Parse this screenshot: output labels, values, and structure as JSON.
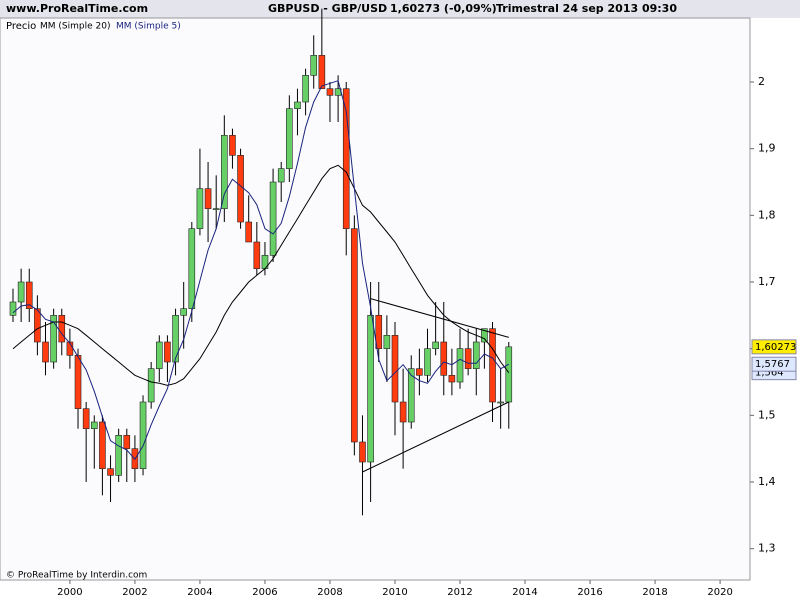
{
  "header": {
    "site": "www.ProRealTime.com",
    "footer": "© ProRealTime by Interdin.com"
  },
  "chart_data": {
    "type": "candlestick",
    "title": "GBPUSD - GBP/USD",
    "quote": "1,60273 (-0,09%)",
    "subtitle": "Trimestral  24 sep 2013 09:30",
    "x": [
      1998.25,
      1998.5,
      1998.75,
      1999,
      1999.25,
      1999.5,
      1999.75,
      2000,
      2000.25,
      2000.5,
      2000.75,
      2001,
      2001.25,
      2001.5,
      2001.75,
      2002,
      2002.25,
      2002.5,
      2002.75,
      2003,
      2003.25,
      2003.5,
      2003.75,
      2004,
      2004.25,
      2004.5,
      2004.75,
      2005,
      2005.25,
      2005.5,
      2005.75,
      2006,
      2006.25,
      2006.5,
      2006.75,
      2007,
      2007.25,
      2007.5,
      2007.75,
      2008,
      2008.25,
      2008.5,
      2008.75,
      2009,
      2009.25,
      2009.5,
      2009.75,
      2010,
      2010.25,
      2010.5,
      2010.75,
      2011,
      2011.25,
      2011.5,
      2011.75,
      2012,
      2012.25,
      2012.5,
      2012.75,
      2013,
      2013.25,
      2013.5
    ],
    "series": [
      {
        "name": "Precio",
        "up_color": "#66d066",
        "down_color": "#ff3c10",
        "open": [
          1.65,
          1.67,
          1.7,
          1.66,
          1.61,
          1.58,
          1.65,
          1.61,
          1.59,
          1.51,
          1.48,
          1.49,
          1.42,
          1.41,
          1.47,
          1.45,
          1.42,
          1.52,
          1.57,
          1.61,
          1.58,
          1.65,
          1.66,
          1.78,
          1.84,
          1.81,
          1.81,
          1.92,
          1.89,
          1.79,
          1.76,
          1.72,
          1.74,
          1.85,
          1.87,
          1.96,
          1.97,
          2.01,
          2.04,
          1.99,
          1.98,
          1.99,
          1.78,
          1.46,
          1.43,
          1.65,
          1.6,
          1.62,
          1.52,
          1.49,
          1.57,
          1.56,
          1.6,
          1.61,
          1.56,
          1.55,
          1.6,
          1.57,
          1.61,
          1.63,
          1.52,
          1.52
        ],
        "high": [
          1.69,
          1.72,
          1.72,
          1.68,
          1.64,
          1.66,
          1.66,
          1.63,
          1.6,
          1.52,
          1.5,
          1.5,
          1.44,
          1.48,
          1.48,
          1.47,
          1.53,
          1.58,
          1.62,
          1.62,
          1.66,
          1.7,
          1.79,
          1.9,
          1.88,
          1.86,
          1.95,
          1.93,
          1.9,
          1.83,
          1.79,
          1.76,
          1.87,
          1.88,
          1.98,
          1.99,
          2.02,
          2.07,
          2.11,
          2.0,
          2.01,
          2.0,
          1.8,
          1.5,
          1.7,
          1.7,
          1.65,
          1.64,
          1.57,
          1.59,
          1.6,
          1.63,
          1.67,
          1.67,
          1.6,
          1.63,
          1.63,
          1.63,
          1.63,
          1.64,
          1.57,
          1.61
        ],
        "low": [
          1.64,
          1.64,
          1.64,
          1.59,
          1.56,
          1.57,
          1.59,
          1.57,
          1.48,
          1.4,
          1.42,
          1.38,
          1.37,
          1.4,
          1.4,
          1.4,
          1.41,
          1.51,
          1.55,
          1.55,
          1.56,
          1.6,
          1.64,
          1.77,
          1.76,
          1.78,
          1.79,
          1.87,
          1.78,
          1.76,
          1.71,
          1.71,
          1.73,
          1.82,
          1.85,
          1.92,
          1.95,
          1.99,
          1.99,
          1.94,
          1.94,
          1.74,
          1.44,
          1.35,
          1.37,
          1.58,
          1.55,
          1.47,
          1.42,
          1.48,
          1.53,
          1.55,
          1.59,
          1.53,
          1.53,
          1.54,
          1.56,
          1.53,
          1.57,
          1.49,
          1.48,
          1.48
        ],
        "close": [
          1.67,
          1.7,
          1.66,
          1.61,
          1.58,
          1.65,
          1.61,
          1.59,
          1.51,
          1.48,
          1.49,
          1.42,
          1.41,
          1.47,
          1.45,
          1.42,
          1.52,
          1.57,
          1.61,
          1.58,
          1.65,
          1.66,
          1.78,
          1.84,
          1.81,
          1.81,
          1.92,
          1.89,
          1.79,
          1.76,
          1.72,
          1.74,
          1.85,
          1.87,
          1.96,
          1.97,
          2.01,
          2.04,
          1.99,
          1.98,
          1.99,
          1.78,
          1.46,
          1.43,
          1.65,
          1.6,
          1.62,
          1.52,
          1.49,
          1.57,
          1.56,
          1.6,
          1.61,
          1.56,
          1.55,
          1.6,
          1.57,
          1.61,
          1.63,
          1.52,
          1.52,
          1.60273
        ]
      },
      {
        "name": "MM (Simple 20)",
        "color": "#000000",
        "values": [
          1.6,
          1.61,
          1.62,
          1.63,
          1.635,
          1.64,
          1.64,
          1.635,
          1.63,
          1.62,
          1.61,
          1.6,
          1.59,
          1.58,
          1.57,
          1.56,
          1.555,
          1.55,
          1.548,
          1.545,
          1.548,
          1.555,
          1.57,
          1.585,
          1.605,
          1.625,
          1.65,
          1.67,
          1.685,
          1.7,
          1.71,
          1.72,
          1.735,
          1.755,
          1.775,
          1.795,
          1.815,
          1.835,
          1.855,
          1.87,
          1.875,
          1.865,
          1.84,
          1.815,
          1.805,
          1.79,
          1.775,
          1.76,
          1.74,
          1.72,
          1.7,
          1.68,
          1.665,
          1.65,
          1.64,
          1.632,
          1.625,
          1.62,
          1.615,
          1.6,
          1.58,
          1.564
        ]
      },
      {
        "name": "MM (Simple 5)",
        "color": "#1a237e",
        "values": [
          1.654,
          1.664,
          1.666,
          1.658,
          1.644,
          1.64,
          1.622,
          1.608,
          1.588,
          1.568,
          1.536,
          1.498,
          1.462,
          1.454,
          1.448,
          1.434,
          1.454,
          1.486,
          1.514,
          1.54,
          1.586,
          1.614,
          1.656,
          1.702,
          1.748,
          1.78,
          1.832,
          1.854,
          1.844,
          1.834,
          1.816,
          1.78,
          1.772,
          1.788,
          1.828,
          1.878,
          1.932,
          1.97,
          1.994,
          1.998,
          2.002,
          1.956,
          1.84,
          1.728,
          1.662,
          1.584,
          1.552,
          1.564,
          1.576,
          1.56,
          1.552,
          1.548,
          1.566,
          1.58,
          1.576,
          1.584,
          1.578,
          1.578,
          1.592,
          1.586,
          1.57,
          1.5767
        ]
      }
    ],
    "trendlines": [
      {
        "x": [
          2009.25,
          2013.5
        ],
        "y": [
          1.675,
          1.617
        ]
      },
      {
        "x": [
          2009.0,
          2013.5
        ],
        "y": [
          1.415,
          1.52
        ]
      }
    ],
    "price_labels": [
      {
        "value": 1.60273,
        "label": "1,60273",
        "color": "#ffee00"
      },
      {
        "value": 1.5767,
        "label": "1,5767",
        "color": "#dde8ff"
      },
      {
        "value": 1.564,
        "label": "1,564",
        "color": "#dde8ff"
      }
    ],
    "xlim": [
      1997.85,
      2020.92
    ],
    "xticks": [
      2000,
      2002,
      2004,
      2006,
      2008,
      2010,
      2012,
      2014,
      2016,
      2018,
      2020
    ],
    "ylim": [
      1.253,
      2.096
    ],
    "yticks": [
      {
        "value": 1.3,
        "label": "1,3"
      },
      {
        "value": 1.4,
        "label": "1,4"
      },
      {
        "value": 1.5,
        "label": "1,5"
      },
      {
        "value": 1.6,
        "label": "1,6"
      },
      {
        "value": 1.7,
        "label": "1,7"
      },
      {
        "value": 1.8,
        "label": "1,8"
      },
      {
        "value": 1.9,
        "label": "1,9"
      },
      2
    ]
  }
}
